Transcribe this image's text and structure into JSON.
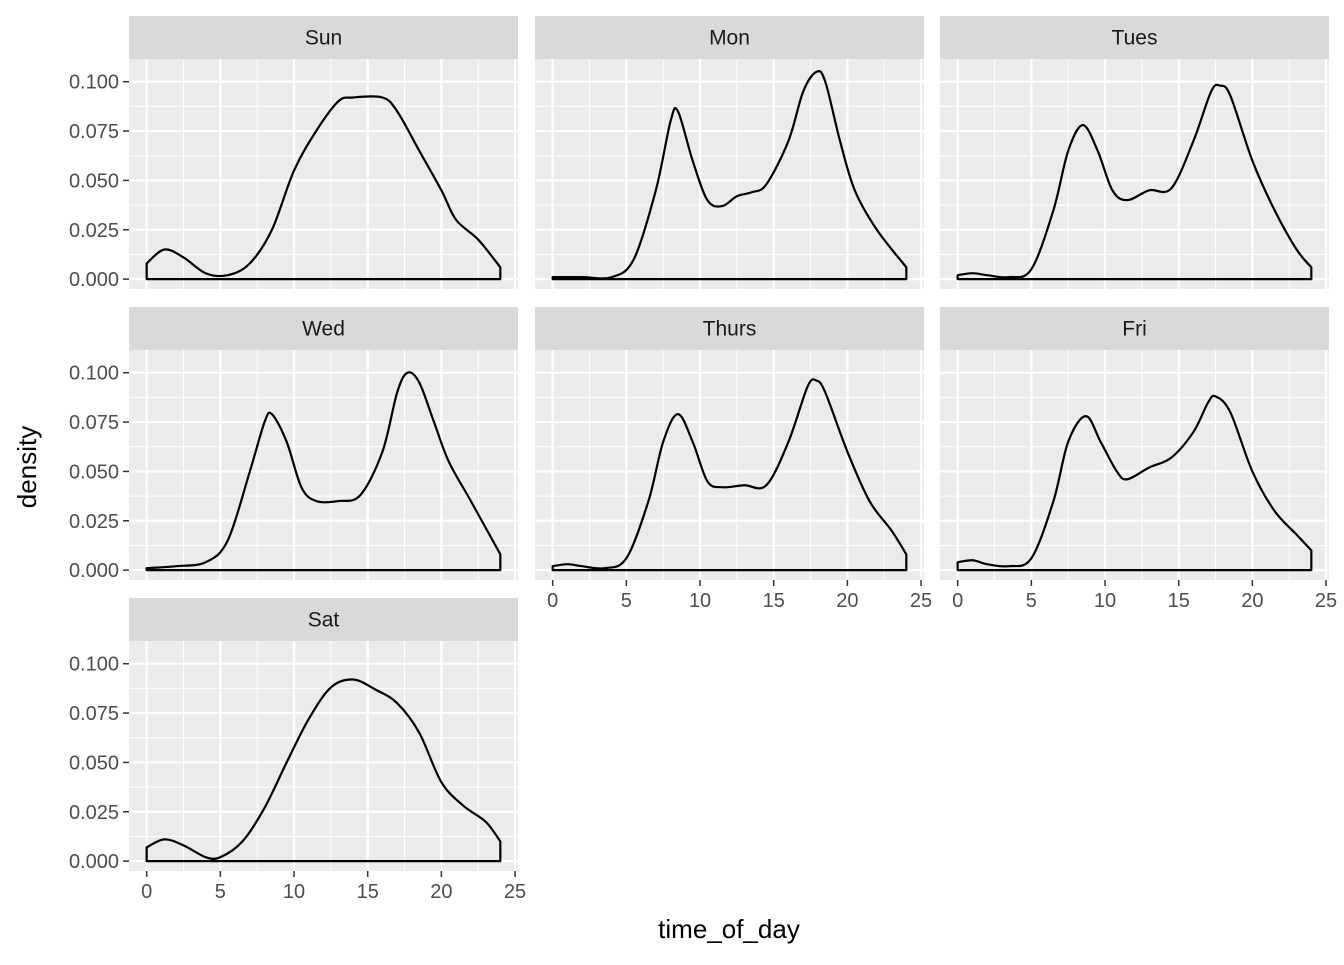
{
  "chart_data": {
    "type": "area",
    "facet_by": "day",
    "xlabel": "time_of_day",
    "ylabel": "density",
    "xlim": [
      -1.2,
      25.2
    ],
    "ylim": [
      -0.005,
      0.1115
    ],
    "x_ticks": [
      0,
      5,
      10,
      15,
      20,
      25
    ],
    "y_ticks": [
      0.0,
      0.025,
      0.05,
      0.075,
      0.1
    ],
    "y_tick_labels": [
      "0.000",
      "0.025",
      "0.050",
      "0.075",
      "0.100"
    ],
    "x_domain": [
      0,
      24
    ],
    "grid": true,
    "legend": "none",
    "colors": {
      "panel_bg": "#ebebeb",
      "strip_bg": "#d9d9d9",
      "grid": "#ffffff",
      "line": "#000000",
      "tick_text": "#4d4d4d"
    },
    "panels": [
      {
        "name": "Sun",
        "points": [
          [
            0,
            0.008
          ],
          [
            1.2,
            0.015
          ],
          [
            2.5,
            0.011
          ],
          [
            4,
            0.003
          ],
          [
            5.5,
            0.002
          ],
          [
            7,
            0.008
          ],
          [
            8.5,
            0.025
          ],
          [
            10,
            0.055
          ],
          [
            11.5,
            0.075
          ],
          [
            13,
            0.09
          ],
          [
            14,
            0.092
          ],
          [
            16,
            0.092
          ],
          [
            17,
            0.085
          ],
          [
            18.5,
            0.065
          ],
          [
            20,
            0.045
          ],
          [
            21,
            0.03
          ],
          [
            22.5,
            0.02
          ],
          [
            24,
            0.006
          ]
        ]
      },
      {
        "name": "Mon",
        "points": [
          [
            0,
            0.001
          ],
          [
            2,
            0.001
          ],
          [
            4,
            0.001
          ],
          [
            5.5,
            0.01
          ],
          [
            7,
            0.045
          ],
          [
            8,
            0.08
          ],
          [
            8.5,
            0.085
          ],
          [
            9.5,
            0.06
          ],
          [
            10.5,
            0.04
          ],
          [
            11.5,
            0.037
          ],
          [
            12.5,
            0.042
          ],
          [
            13.5,
            0.044
          ],
          [
            14.5,
            0.048
          ],
          [
            16,
            0.07
          ],
          [
            17,
            0.095
          ],
          [
            17.9,
            0.105
          ],
          [
            18.5,
            0.1
          ],
          [
            19.5,
            0.07
          ],
          [
            20.5,
            0.045
          ],
          [
            22,
            0.025
          ],
          [
            24,
            0.006
          ]
        ]
      },
      {
        "name": "Tues",
        "points": [
          [
            0,
            0.002
          ],
          [
            1,
            0.003
          ],
          [
            2,
            0.002
          ],
          [
            3.5,
            0.001
          ],
          [
            5,
            0.005
          ],
          [
            6.5,
            0.035
          ],
          [
            7.5,
            0.065
          ],
          [
            8.5,
            0.078
          ],
          [
            9.5,
            0.065
          ],
          [
            10.5,
            0.045
          ],
          [
            11.5,
            0.04
          ],
          [
            13,
            0.045
          ],
          [
            14.5,
            0.046
          ],
          [
            16,
            0.07
          ],
          [
            17.2,
            0.095
          ],
          [
            17.8,
            0.098
          ],
          [
            18.5,
            0.093
          ],
          [
            20,
            0.06
          ],
          [
            21.5,
            0.035
          ],
          [
            23,
            0.015
          ],
          [
            24,
            0.006
          ]
        ]
      },
      {
        "name": "Wed",
        "points": [
          [
            0,
            0.001
          ],
          [
            2,
            0.002
          ],
          [
            4,
            0.004
          ],
          [
            5.5,
            0.015
          ],
          [
            7,
            0.05
          ],
          [
            8,
            0.075
          ],
          [
            8.5,
            0.079
          ],
          [
            9.5,
            0.065
          ],
          [
            10.5,
            0.042
          ],
          [
            11.5,
            0.035
          ],
          [
            13,
            0.035
          ],
          [
            14.5,
            0.038
          ],
          [
            16,
            0.06
          ],
          [
            17,
            0.09
          ],
          [
            17.7,
            0.1
          ],
          [
            18.5,
            0.095
          ],
          [
            19.5,
            0.075
          ],
          [
            20.5,
            0.055
          ],
          [
            22,
            0.035
          ],
          [
            24,
            0.008
          ]
        ]
      },
      {
        "name": "Thurs",
        "points": [
          [
            0,
            0.002
          ],
          [
            1,
            0.003
          ],
          [
            2,
            0.002
          ],
          [
            3.5,
            0.001
          ],
          [
            5,
            0.006
          ],
          [
            6.5,
            0.035
          ],
          [
            7.5,
            0.065
          ],
          [
            8.5,
            0.079
          ],
          [
            9.5,
            0.065
          ],
          [
            10.5,
            0.045
          ],
          [
            11.5,
            0.042
          ],
          [
            13,
            0.043
          ],
          [
            14.5,
            0.043
          ],
          [
            16,
            0.065
          ],
          [
            17.3,
            0.093
          ],
          [
            17.9,
            0.096
          ],
          [
            18.5,
            0.09
          ],
          [
            20,
            0.06
          ],
          [
            21.5,
            0.035
          ],
          [
            23,
            0.02
          ],
          [
            24,
            0.008
          ]
        ]
      },
      {
        "name": "Fri",
        "points": [
          [
            0,
            0.004
          ],
          [
            1,
            0.005
          ],
          [
            2,
            0.003
          ],
          [
            3.5,
            0.002
          ],
          [
            5,
            0.006
          ],
          [
            6.5,
            0.035
          ],
          [
            7.5,
            0.065
          ],
          [
            8.7,
            0.078
          ],
          [
            9.7,
            0.065
          ],
          [
            10.8,
            0.05
          ],
          [
            11.5,
            0.046
          ],
          [
            13,
            0.052
          ],
          [
            14.5,
            0.057
          ],
          [
            16,
            0.07
          ],
          [
            17,
            0.085
          ],
          [
            17.5,
            0.088
          ],
          [
            18.5,
            0.08
          ],
          [
            20,
            0.05
          ],
          [
            21.5,
            0.03
          ],
          [
            23,
            0.018
          ],
          [
            24,
            0.01
          ]
        ]
      },
      {
        "name": "Sat",
        "points": [
          [
            0,
            0.007
          ],
          [
            1.2,
            0.011
          ],
          [
            2.5,
            0.008
          ],
          [
            4,
            0.002
          ],
          [
            5,
            0.002
          ],
          [
            6.5,
            0.01
          ],
          [
            8,
            0.027
          ],
          [
            9.5,
            0.05
          ],
          [
            11,
            0.072
          ],
          [
            12.5,
            0.088
          ],
          [
            14,
            0.092
          ],
          [
            15.5,
            0.087
          ],
          [
            17,
            0.08
          ],
          [
            18.5,
            0.065
          ],
          [
            20,
            0.04
          ],
          [
            21.5,
            0.028
          ],
          [
            23,
            0.02
          ],
          [
            24,
            0.01
          ]
        ]
      }
    ]
  }
}
